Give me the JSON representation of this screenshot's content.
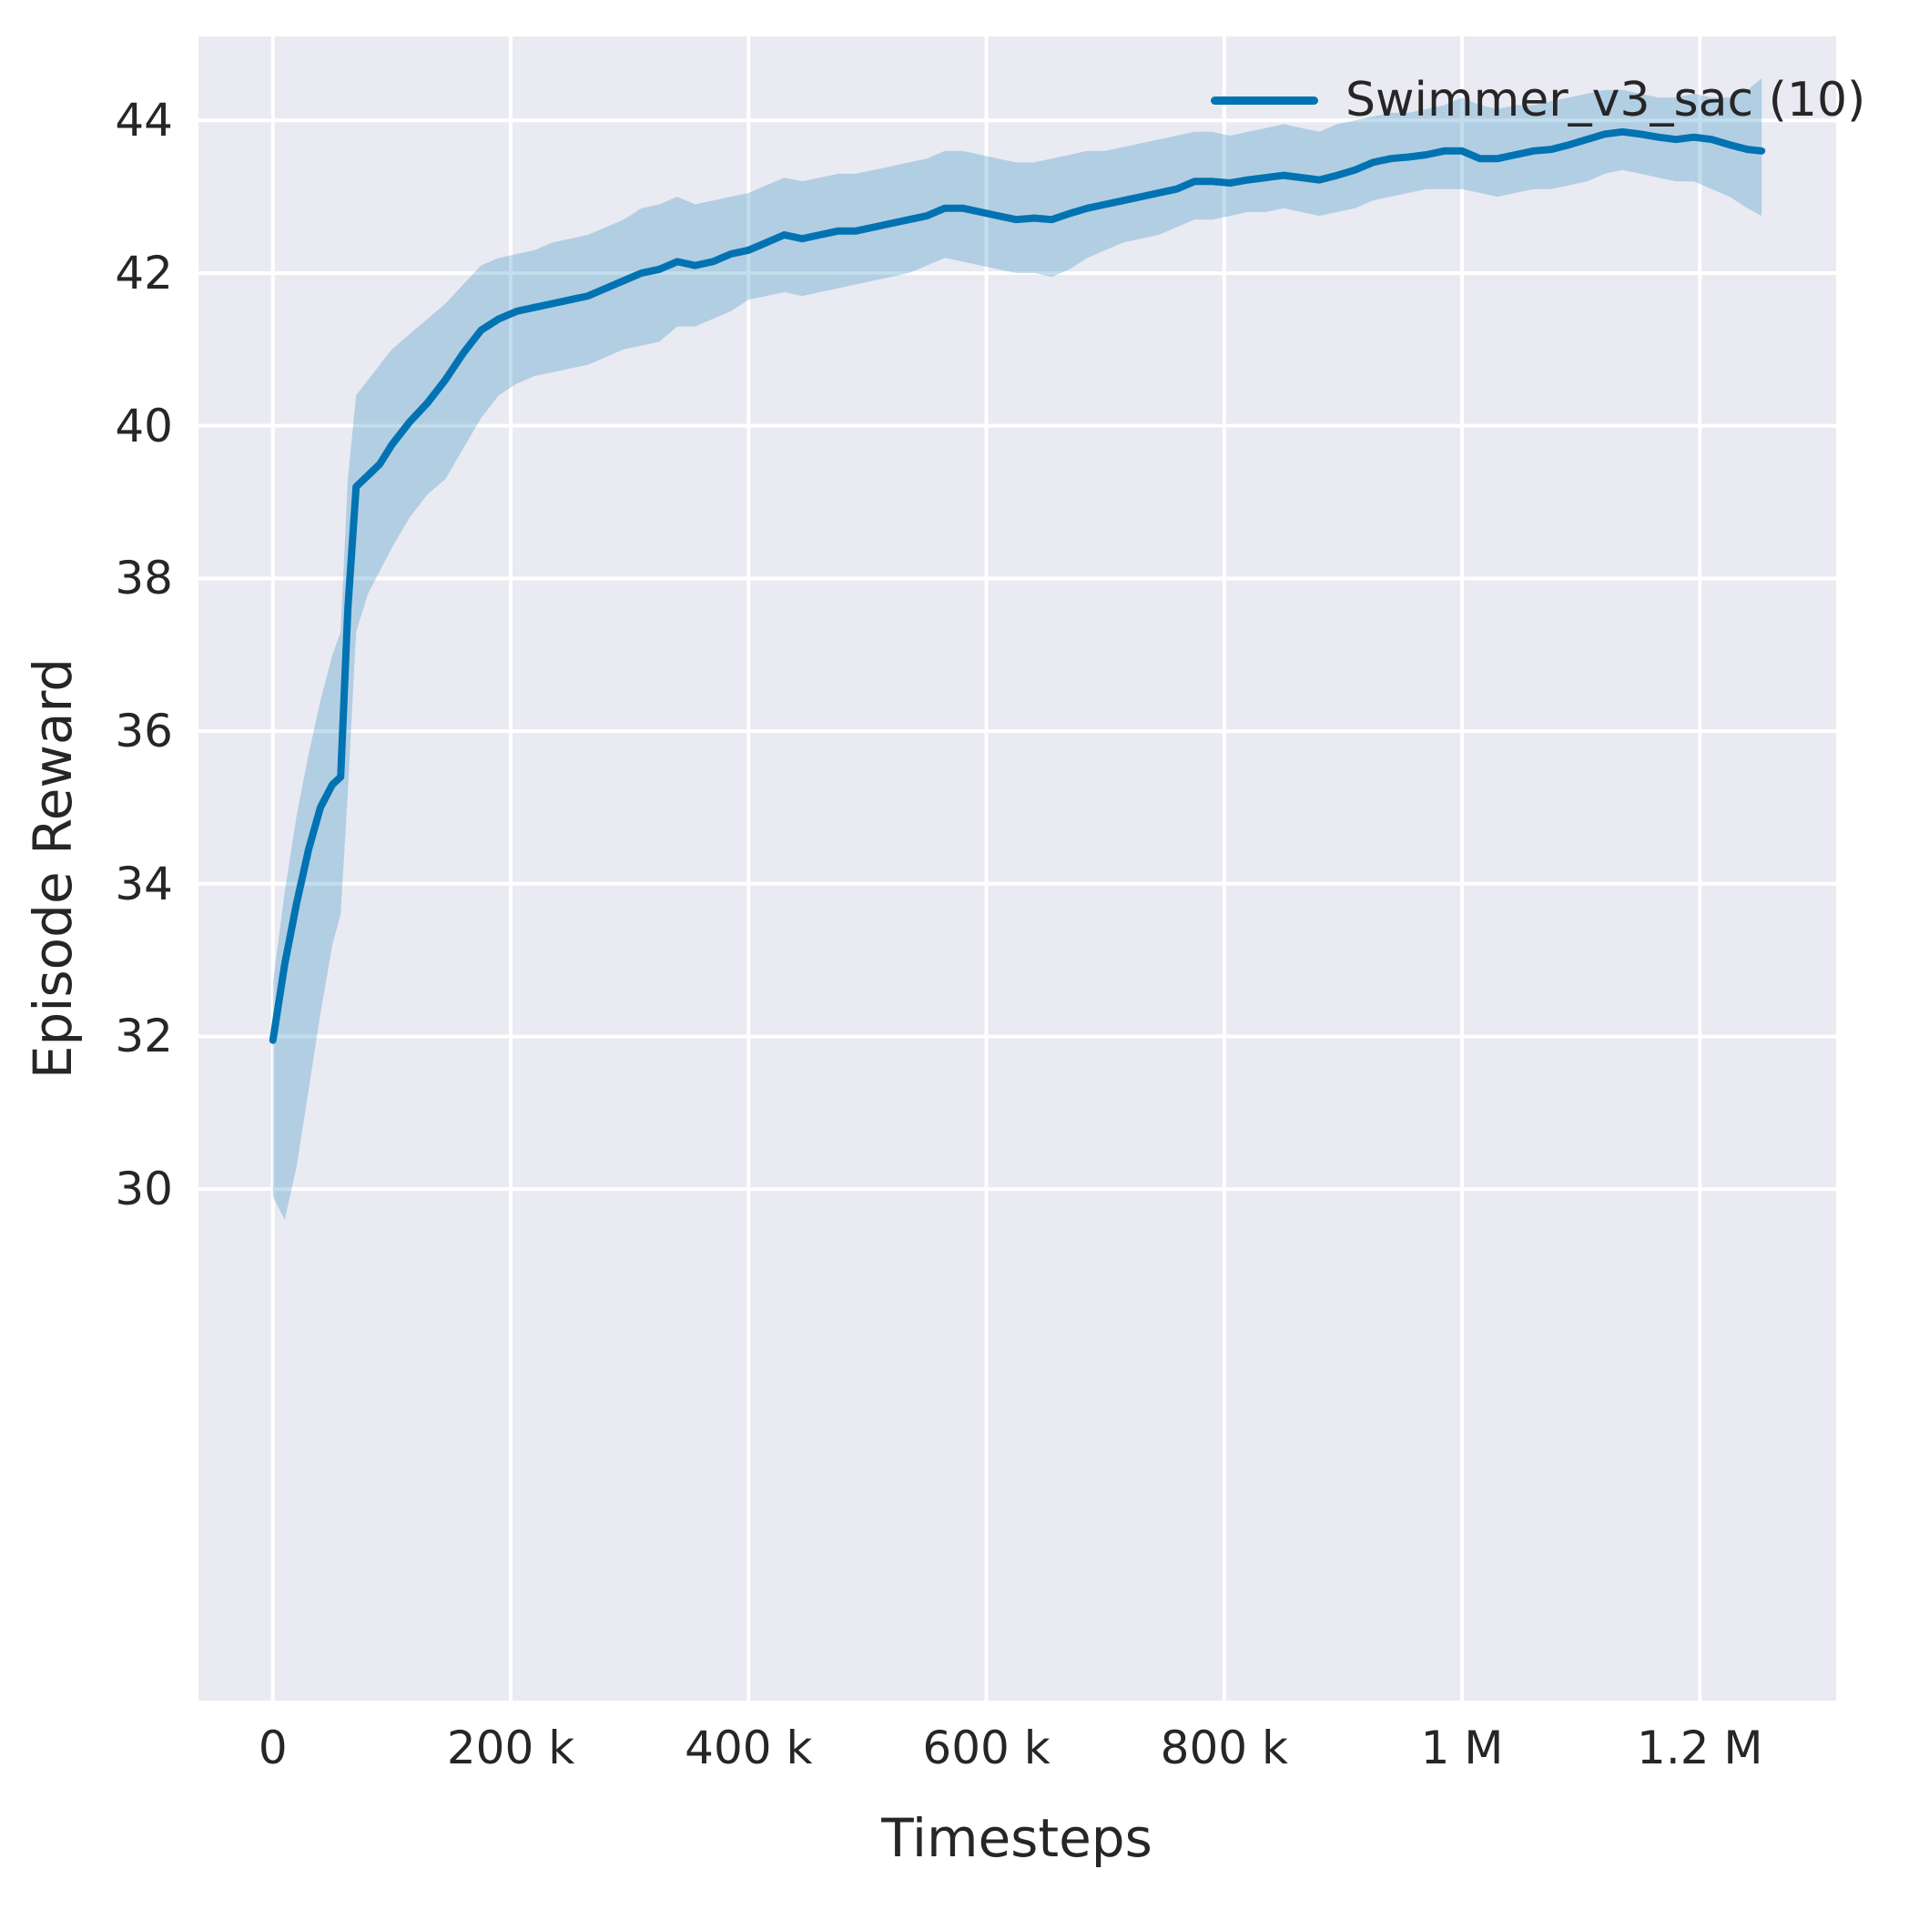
{
  "colors": {
    "background": "#ffffff",
    "plot_background": "#eaeaf2",
    "grid": "#ffffff",
    "text": "#262626",
    "series": "#0173b2",
    "band_opacity": 0.24
  },
  "legend": {
    "entries": [
      {
        "label": "Swimmer_v3_sac (10)",
        "color": "#0173b2"
      }
    ],
    "position": "upper right"
  },
  "chart_data": {
    "type": "line",
    "title": "",
    "xlabel": "Timesteps",
    "ylabel": "Episode Reward",
    "grid": true,
    "legend_position": "upper right",
    "xlim": [
      -62600,
      1314600
    ],
    "ylim": [
      23.3,
      45.1
    ],
    "x_ticks": {
      "values": [
        0,
        200000,
        400000,
        600000,
        800000,
        1000000,
        1200000
      ],
      "labels": [
        "0",
        "200 k",
        "400 k",
        "600 k",
        "800 k",
        "1 M",
        "1.2 M"
      ]
    },
    "y_ticks": {
      "values": [
        30,
        32,
        34,
        36,
        38,
        40,
        42,
        44
      ],
      "labels": [
        "30",
        "32",
        "34",
        "36",
        "38",
        "40",
        "42",
        "44"
      ]
    },
    "series": [
      {
        "name": "Swimmer_v3_sac (10)",
        "color": "#0173b2",
        "x": [
          0,
          10000,
          20000,
          30000,
          40000,
          50000,
          57000,
          63000,
          70000,
          80000,
          90000,
          100000,
          115000,
          130000,
          145000,
          160000,
          175000,
          190000,
          205000,
          220000,
          235000,
          250000,
          265000,
          280000,
          295000,
          310000,
          325000,
          340000,
          355000,
          370000,
          385000,
          400000,
          415000,
          430000,
          445000,
          460000,
          475000,
          490000,
          505000,
          520000,
          535000,
          550000,
          565000,
          580000,
          595000,
          610000,
          625000,
          640000,
          655000,
          670000,
          685000,
          700000,
          715000,
          730000,
          745000,
          760000,
          775000,
          790000,
          805000,
          820000,
          835000,
          850000,
          865000,
          880000,
          895000,
          910000,
          925000,
          940000,
          955000,
          970000,
          985000,
          1000000,
          1015000,
          1030000,
          1045000,
          1060000,
          1075000,
          1090000,
          1105000,
          1120000,
          1135000,
          1150000,
          1165000,
          1180000,
          1195000,
          1210000,
          1225000,
          1240000,
          1252000
        ],
        "mean": [
          31.95,
          32.95,
          33.75,
          34.45,
          35.0,
          35.3,
          35.4,
          37.6,
          39.2,
          39.35,
          39.5,
          39.75,
          40.05,
          40.3,
          40.6,
          40.95,
          41.25,
          41.4,
          41.5,
          41.55,
          41.6,
          41.65,
          41.7,
          41.8,
          41.9,
          42.0,
          42.05,
          42.15,
          42.1,
          42.15,
          42.25,
          42.3,
          42.4,
          42.5,
          42.45,
          42.5,
          42.55,
          42.55,
          42.6,
          42.65,
          42.7,
          42.75,
          42.85,
          42.85,
          42.8,
          42.75,
          42.7,
          42.72,
          42.7,
          42.78,
          42.85,
          42.9,
          42.95,
          43.0,
          43.05,
          43.1,
          43.2,
          43.2,
          43.18,
          43.22,
          43.25,
          43.28,
          43.25,
          43.22,
          43.28,
          43.35,
          43.45,
          43.5,
          43.52,
          43.55,
          43.6,
          43.6,
          43.5,
          43.5,
          43.55,
          43.6,
          43.62,
          43.68,
          43.75,
          43.82,
          43.85,
          43.82,
          43.78,
          43.75,
          43.78,
          43.75,
          43.68,
          43.62,
          43.6
        ],
        "lower": [
          29.9,
          29.6,
          30.3,
          31.3,
          32.3,
          33.2,
          33.6,
          35.2,
          37.3,
          37.8,
          38.1,
          38.4,
          38.8,
          39.1,
          39.3,
          39.7,
          40.1,
          40.4,
          40.55,
          40.65,
          40.7,
          40.75,
          40.8,
          40.9,
          41.0,
          41.05,
          41.1,
          41.3,
          41.3,
          41.4,
          41.5,
          41.65,
          41.7,
          41.75,
          41.7,
          41.75,
          41.8,
          41.85,
          41.9,
          41.95,
          42.0,
          42.1,
          42.2,
          42.15,
          42.1,
          42.05,
          42.0,
          42.0,
          41.95,
          42.05,
          42.2,
          42.3,
          42.4,
          42.45,
          42.5,
          42.6,
          42.7,
          42.7,
          42.75,
          42.8,
          42.8,
          42.85,
          42.8,
          42.75,
          42.8,
          42.85,
          42.95,
          43.0,
          43.05,
          43.1,
          43.1,
          43.1,
          43.05,
          43.0,
          43.05,
          43.1,
          43.1,
          43.15,
          43.2,
          43.3,
          43.35,
          43.3,
          43.25,
          43.2,
          43.2,
          43.1,
          43.0,
          42.85,
          42.75
        ],
        "upper": [
          32.7,
          33.9,
          34.9,
          35.7,
          36.4,
          37.0,
          37.3,
          39.3,
          40.4,
          40.6,
          40.8,
          41.0,
          41.2,
          41.4,
          41.6,
          41.85,
          42.1,
          42.2,
          42.25,
          42.3,
          42.4,
          42.45,
          42.5,
          42.6,
          42.7,
          42.85,
          42.9,
          43.0,
          42.9,
          42.95,
          43.0,
          43.05,
          43.15,
          43.25,
          43.2,
          43.25,
          43.3,
          43.3,
          43.35,
          43.4,
          43.45,
          43.5,
          43.6,
          43.6,
          43.55,
          43.5,
          43.45,
          43.45,
          43.5,
          43.55,
          43.6,
          43.6,
          43.65,
          43.7,
          43.75,
          43.8,
          43.85,
          43.85,
          43.8,
          43.85,
          43.9,
          43.95,
          43.9,
          43.85,
          43.95,
          44.0,
          44.05,
          44.1,
          44.1,
          44.15,
          44.2,
          44.3,
          44.2,
          44.15,
          44.2,
          44.2,
          44.25,
          44.3,
          44.35,
          44.4,
          44.4,
          44.35,
          44.3,
          44.3,
          44.35,
          44.3,
          44.3,
          44.4,
          44.55
        ]
      }
    ]
  }
}
